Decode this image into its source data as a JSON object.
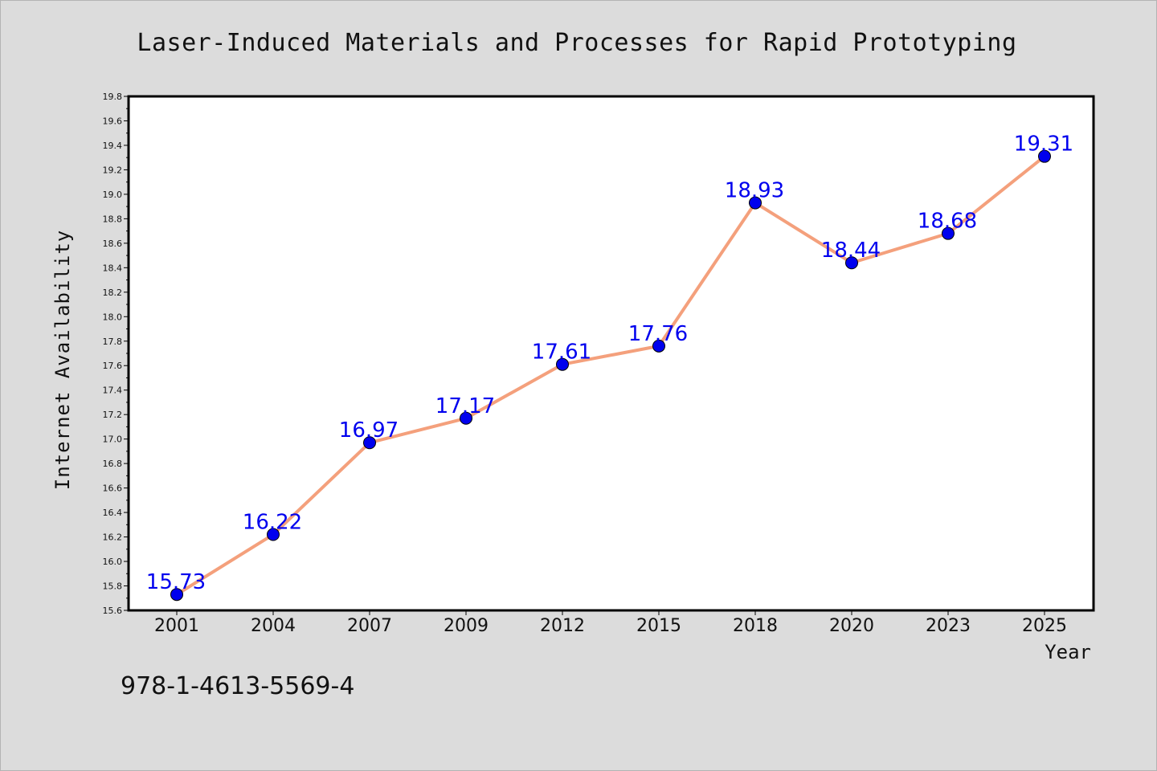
{
  "chart_data": {
    "type": "line",
    "title": "Laser-Induced Materials and Processes for Rapid Prototyping",
    "xlabel": "Year",
    "ylabel": "Internet Availability",
    "categories": [
      "2001",
      "2004",
      "2007",
      "2009",
      "2012",
      "2015",
      "2018",
      "2020",
      "2023",
      "2025"
    ],
    "series": [
      {
        "values": [
          15.73,
          16.22,
          16.97,
          17.17,
          17.61,
          17.76,
          18.93,
          18.44,
          18.68,
          19.31
        ],
        "data_labels": [
          "15.73",
          "16.22",
          "16.97",
          "17.17",
          "17.61",
          "17.76",
          "18.93",
          "18.44",
          "18.68",
          "19.31"
        ],
        "line_color": "#f4a07c",
        "marker_color": "#0000ee",
        "label_color": "#0000ee"
      }
    ],
    "ylim": [
      15.6,
      19.8
    ],
    "yticks": [
      "15.6",
      "15.8",
      "16.0",
      "16.2",
      "16.4",
      "16.6",
      "16.8",
      "17.0",
      "17.2",
      "17.4",
      "17.6",
      "17.8",
      "18.0",
      "18.2",
      "18.4",
      "18.6",
      "18.8",
      "19.0",
      "19.2",
      "19.4",
      "19.6",
      "19.8"
    ],
    "grid": false,
    "legend": "none"
  },
  "footer_text": "978-1-4613-5569-4"
}
